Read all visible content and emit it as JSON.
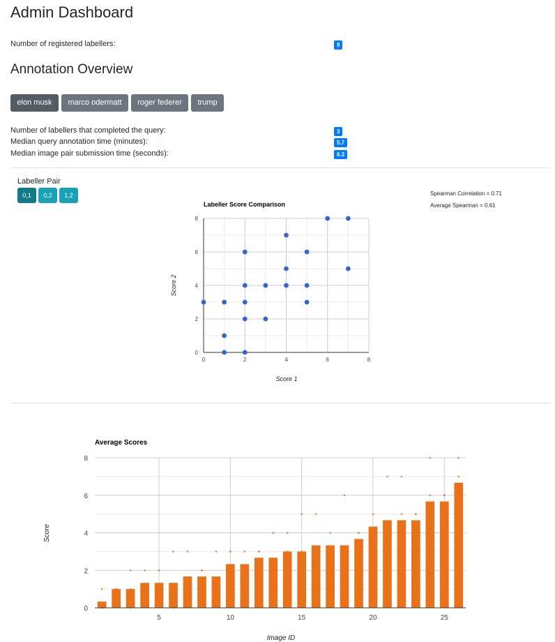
{
  "page": {
    "title": "Admin Dashboard",
    "registered_label": "Number of registered labellers:",
    "registered_count": "9",
    "section_title": "Annotation Overview"
  },
  "queries": [
    {
      "label": "elon musk",
      "active": true
    },
    {
      "label": "marco odermatt",
      "active": false
    },
    {
      "label": "roger federer",
      "active": false
    },
    {
      "label": "trump",
      "active": false
    }
  ],
  "stats": [
    {
      "label": "Number of labellers that completed the query:",
      "value": "3"
    },
    {
      "label": "Median query annotation time (minutes):",
      "value": "5.7"
    },
    {
      "label": "Median image pair submission time (seconds):",
      "value": "6.3"
    }
  ],
  "labeller_pair": {
    "label": "Labeller Pair",
    "pairs": [
      {
        "label": "0,1",
        "active": true
      },
      {
        "label": "0,2",
        "active": false
      },
      {
        "label": "1,2",
        "active": false
      }
    ],
    "spearman": "Spearman Correlation = 0.71",
    "avg_spearman": "Average Spearman = 0.61"
  },
  "chart_data": [
    {
      "type": "scatter",
      "title": "Labeller Score Comparison",
      "xlabel": "Score 1",
      "ylabel": "Score 2",
      "xlim": [
        0,
        8
      ],
      "ylim": [
        0,
        8
      ],
      "xticks": [
        0,
        2,
        4,
        6,
        8
      ],
      "yticks": [
        0,
        2,
        4,
        6,
        8
      ],
      "grid": true,
      "color": "#3366cc",
      "points": [
        [
          0,
          3
        ],
        [
          1,
          3
        ],
        [
          1,
          1
        ],
        [
          1,
          0
        ],
        [
          2,
          0
        ],
        [
          2,
          2
        ],
        [
          2,
          3
        ],
        [
          2,
          4
        ],
        [
          2,
          6
        ],
        [
          3,
          4
        ],
        [
          3,
          2
        ],
        [
          4,
          7
        ],
        [
          4,
          5
        ],
        [
          4,
          4
        ],
        [
          5,
          6
        ],
        [
          5,
          4
        ],
        [
          5,
          3
        ],
        [
          6,
          8
        ],
        [
          7,
          8
        ],
        [
          7,
          5
        ]
      ]
    },
    {
      "type": "bar",
      "title": "Average Scores",
      "xlabel": "Image ID",
      "ylabel": "Score",
      "xlim": [
        0.5,
        26.5
      ],
      "ylim": [
        0,
        8
      ],
      "xticks": [
        5,
        10,
        15,
        20,
        25
      ],
      "yticks": [
        0,
        2,
        4,
        6,
        8
      ],
      "grid": true,
      "color": "#e8711a",
      "x": [
        1,
        2,
        3,
        4,
        5,
        6,
        7,
        8,
        9,
        10,
        11,
        12,
        13,
        14,
        15,
        16,
        17,
        18,
        19,
        20,
        21,
        22,
        23,
        24,
        25,
        26
      ],
      "values": [
        0.33,
        1,
        1,
        1.33,
        1.33,
        1.33,
        1.67,
        1.67,
        1.67,
        2.33,
        2.33,
        2.67,
        2.67,
        3,
        3,
        3.33,
        3.33,
        3.33,
        3.67,
        4.33,
        4.67,
        4.67,
        4.67,
        5.67,
        5.67,
        6.67
      ],
      "individual_scores": [
        [
          1,
          0,
          0
        ],
        [
          1,
          1,
          1
        ],
        [
          2,
          1,
          0
        ],
        [
          2,
          1,
          1
        ],
        [
          2,
          1,
          1
        ],
        [
          3,
          1,
          0
        ],
        [
          3,
          1,
          1
        ],
        [
          2,
          2,
          1
        ],
        [
          3,
          1,
          1
        ],
        [
          3,
          3,
          1
        ],
        [
          3,
          2,
          2
        ],
        [
          3,
          3,
          2
        ],
        [
          4,
          2,
          2
        ],
        [
          4,
          3,
          2
        ],
        [
          5,
          3,
          1
        ],
        [
          5,
          3,
          2
        ],
        [
          4,
          3,
          3
        ],
        [
          6,
          2,
          2
        ],
        [
          4,
          4,
          3
        ],
        [
          5,
          4,
          4
        ],
        [
          7,
          4,
          3
        ],
        [
          7,
          5,
          2
        ],
        [
          5,
          5,
          4
        ],
        [
          8,
          6,
          3
        ],
        [
          6,
          6,
          5
        ],
        [
          8,
          7,
          5
        ]
      ]
    }
  ]
}
